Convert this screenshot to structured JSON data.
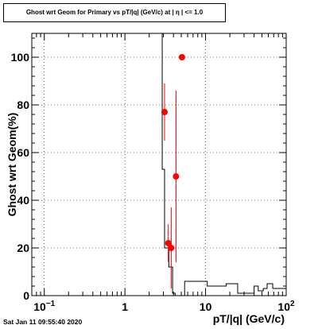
{
  "chart_data": {
    "type": "scatter",
    "title": "Ghost wrt Geom for Primary vs pT/|q| (GeV/c) at | η | <= 1.0",
    "xlabel": "pT/|q| (GeV/c)",
    "ylabel": "Ghost wrt Geom(%)",
    "x_scale": "log",
    "xlim": [
      0.07,
      100
    ],
    "ylim": [
      0,
      110
    ],
    "x_ticks": [
      {
        "value": 0.1,
        "base": "10",
        "exp": "−1"
      },
      {
        "value": 1,
        "base": "1",
        "exp": ""
      },
      {
        "value": 10,
        "base": "10",
        "exp": ""
      },
      {
        "value": 100,
        "base": "10",
        "exp": "2"
      }
    ],
    "y_ticks": [
      0,
      20,
      40,
      60,
      80,
      100
    ],
    "grid": true,
    "colors": {
      "points": "#ff0000",
      "histogram": "#000000"
    },
    "points": [
      {
        "x": 3.1,
        "y": 77,
        "yerr_low": 12,
        "yerr_high": 12
      },
      {
        "x": 3.45,
        "y": 22,
        "yerr_low": 8,
        "yerr_high": 8
      },
      {
        "x": 3.75,
        "y": 20,
        "yerr_low": 17,
        "yerr_high": 17
      },
      {
        "x": 4.3,
        "y": 50,
        "yerr_low": 36,
        "yerr_high": 36
      },
      {
        "x": 5.1,
        "y": 100,
        "yerr_low": 0,
        "yerr_high": 0
      }
    ],
    "histogram": [
      {
        "x0": 0.07,
        "x1": 2.9,
        "y": 110
      },
      {
        "x0": 2.9,
        "x1": 3.1,
        "y": 53
      },
      {
        "x0": 3.1,
        "x1": 3.5,
        "y": 20
      },
      {
        "x0": 3.5,
        "x1": 3.9,
        "y": 12
      },
      {
        "x0": 3.9,
        "x1": 4.2,
        "y": 1
      },
      {
        "x0": 4.2,
        "x1": 4.5,
        "y": 0
      },
      {
        "x0": 4.5,
        "x1": 5.5,
        "y": 0
      },
      {
        "x0": 5.5,
        "x1": 10.5,
        "y": 6
      },
      {
        "x0": 10.5,
        "x1": 18,
        "y": 4
      },
      {
        "x0": 18,
        "x1": 25,
        "y": 5
      },
      {
        "x0": 25,
        "x1": 40,
        "y": 1
      },
      {
        "x0": 40,
        "x1": 45,
        "y": 4
      },
      {
        "x0": 45,
        "x1": 52,
        "y": 2
      },
      {
        "x0": 52,
        "x1": 58,
        "y": 3
      },
      {
        "x0": 58,
        "x1": 68,
        "y": 5
      },
      {
        "x0": 68,
        "x1": 100,
        "y": 3
      }
    ]
  },
  "footer": {
    "timestamp": "Sat Jan 11 09:55:40 2020"
  }
}
